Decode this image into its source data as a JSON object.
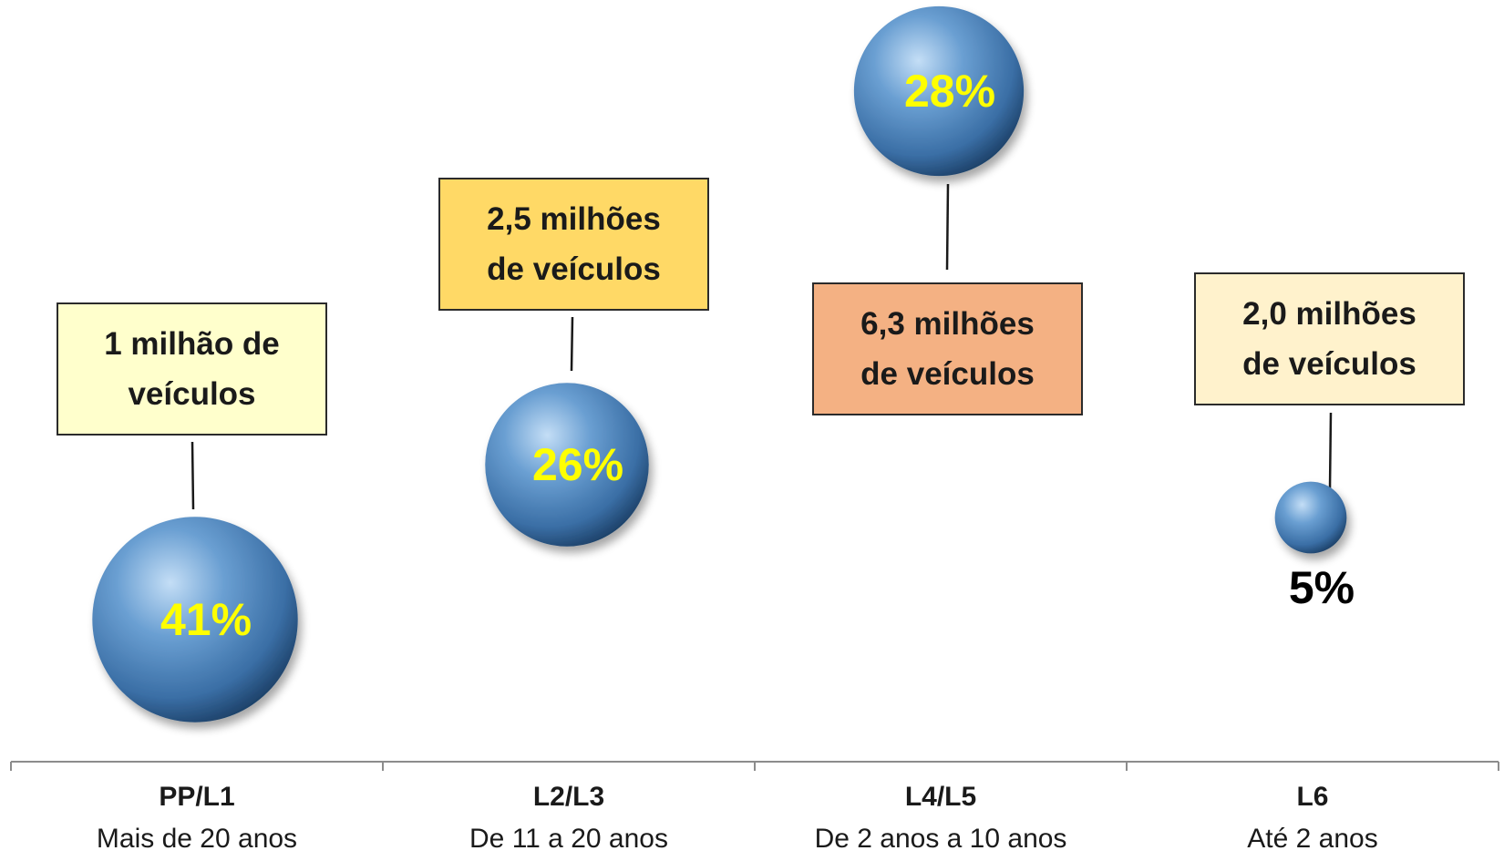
{
  "chart_data": {
    "type": "bubble",
    "categories": [
      "PP/L1",
      "L2/L3",
      "L4/L5",
      "L6"
    ],
    "category_descriptions": [
      "Mais de 20 anos",
      "De 11 a 20 anos",
      "De 2 anos a 10 anos",
      "Até 2 anos"
    ],
    "values": [
      41,
      26,
      28,
      5
    ],
    "value_labels": [
      "41%",
      "26%",
      "28%",
      "5%"
    ],
    "callouts": [
      {
        "line1": "1 milhão de",
        "line2": "veículos",
        "color": "#FFFFCC"
      },
      {
        "line1": "2,5 milhões",
        "line2": "de veículos",
        "color": "#FFD966"
      },
      {
        "line1": "6,3 milhões",
        "line2": "de veículos",
        "color": "#F4B183"
      },
      {
        "line1": "2,0 milhões",
        "line2": "de veículos",
        "color": "#FFF2CC"
      }
    ],
    "colors": {
      "bubble": "#4F81BD",
      "bubble_label": "#FFFF00",
      "outside_label": "#000000"
    }
  }
}
